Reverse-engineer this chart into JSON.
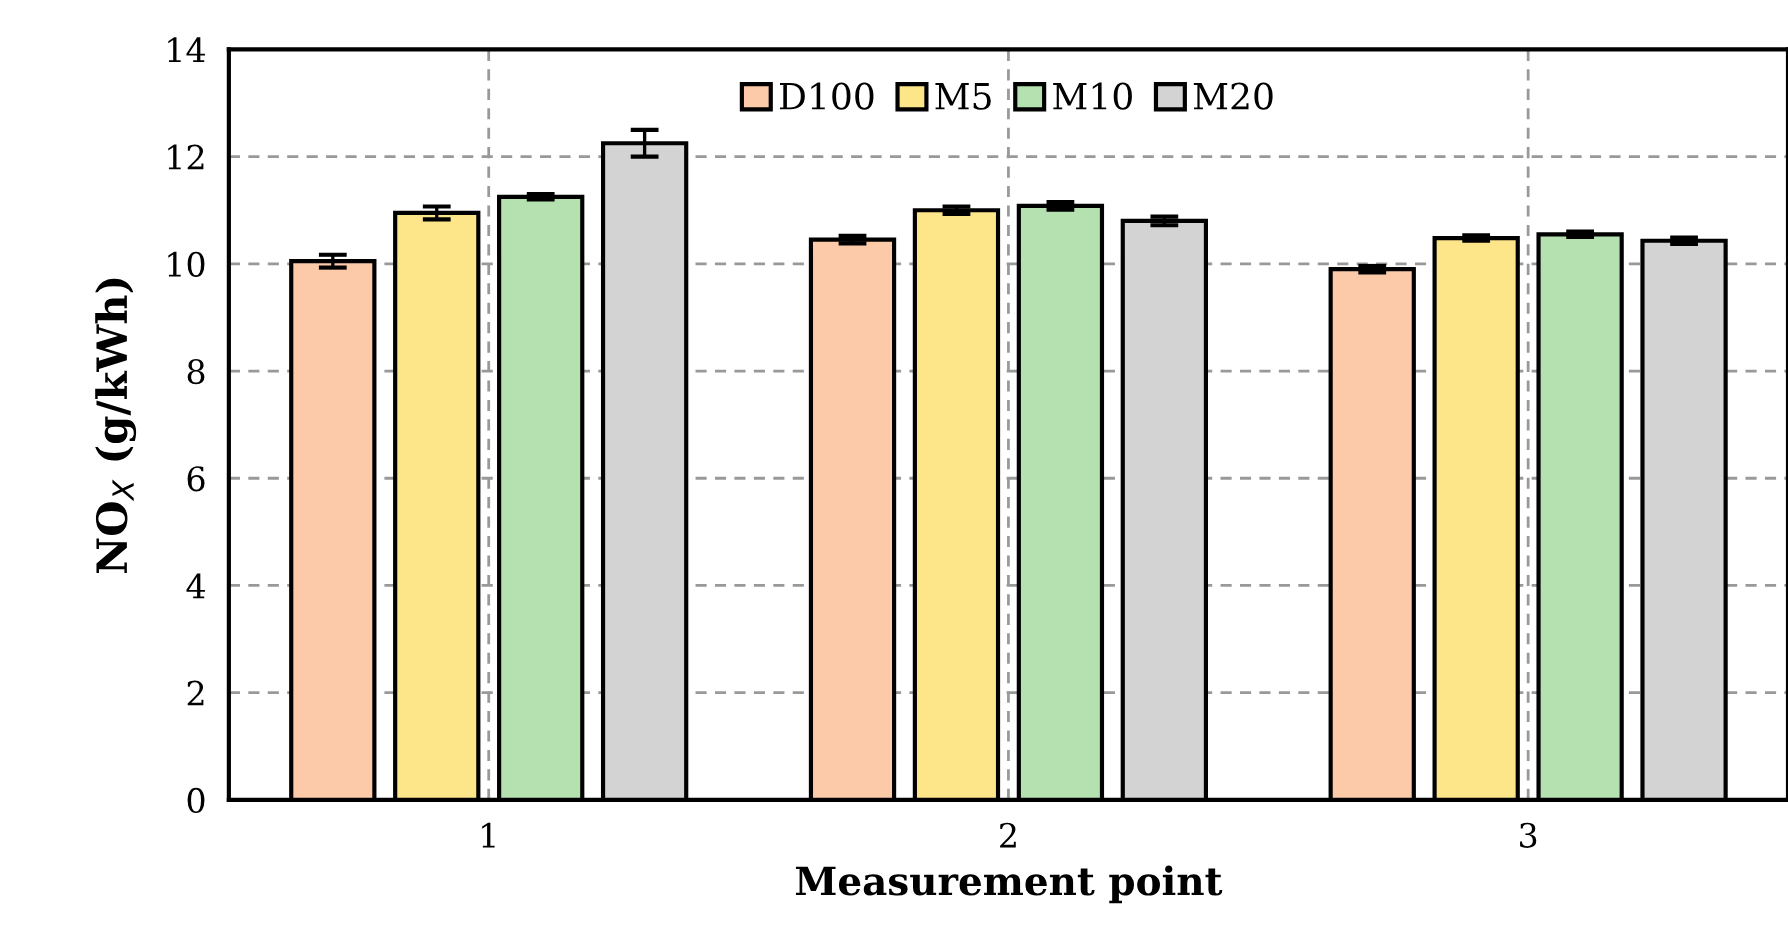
{
  "chart_data": {
    "type": "bar",
    "xlabel": "Measurement point",
    "ylabel": "NO$_{X}$ (g/kWh)",
    "categories": [
      "1",
      "2",
      "3"
    ],
    "series": [
      {
        "name": "D100",
        "color": "#fccaa8",
        "values": [
          10.05,
          10.45,
          9.9
        ],
        "errors": [
          0.12,
          0.07,
          0.06
        ]
      },
      {
        "name": "M5",
        "color": "#fde58a",
        "values": [
          10.95,
          11.0,
          10.48
        ],
        "errors": [
          0.12,
          0.07,
          0.05
        ]
      },
      {
        "name": "M10",
        "color": "#b5e0b0",
        "values": [
          11.25,
          11.08,
          10.55
        ],
        "errors": [
          0.05,
          0.07,
          0.05
        ]
      },
      {
        "name": "M20",
        "color": "#d3d3d3",
        "values": [
          12.25,
          10.8,
          10.43
        ],
        "errors": [
          0.25,
          0.08,
          0.06
        ]
      }
    ],
    "ylim": [
      0,
      14
    ],
    "yticks": [
      0,
      2,
      4,
      6,
      8,
      10,
      12,
      14
    ],
    "grid": true,
    "legend": "top"
  }
}
